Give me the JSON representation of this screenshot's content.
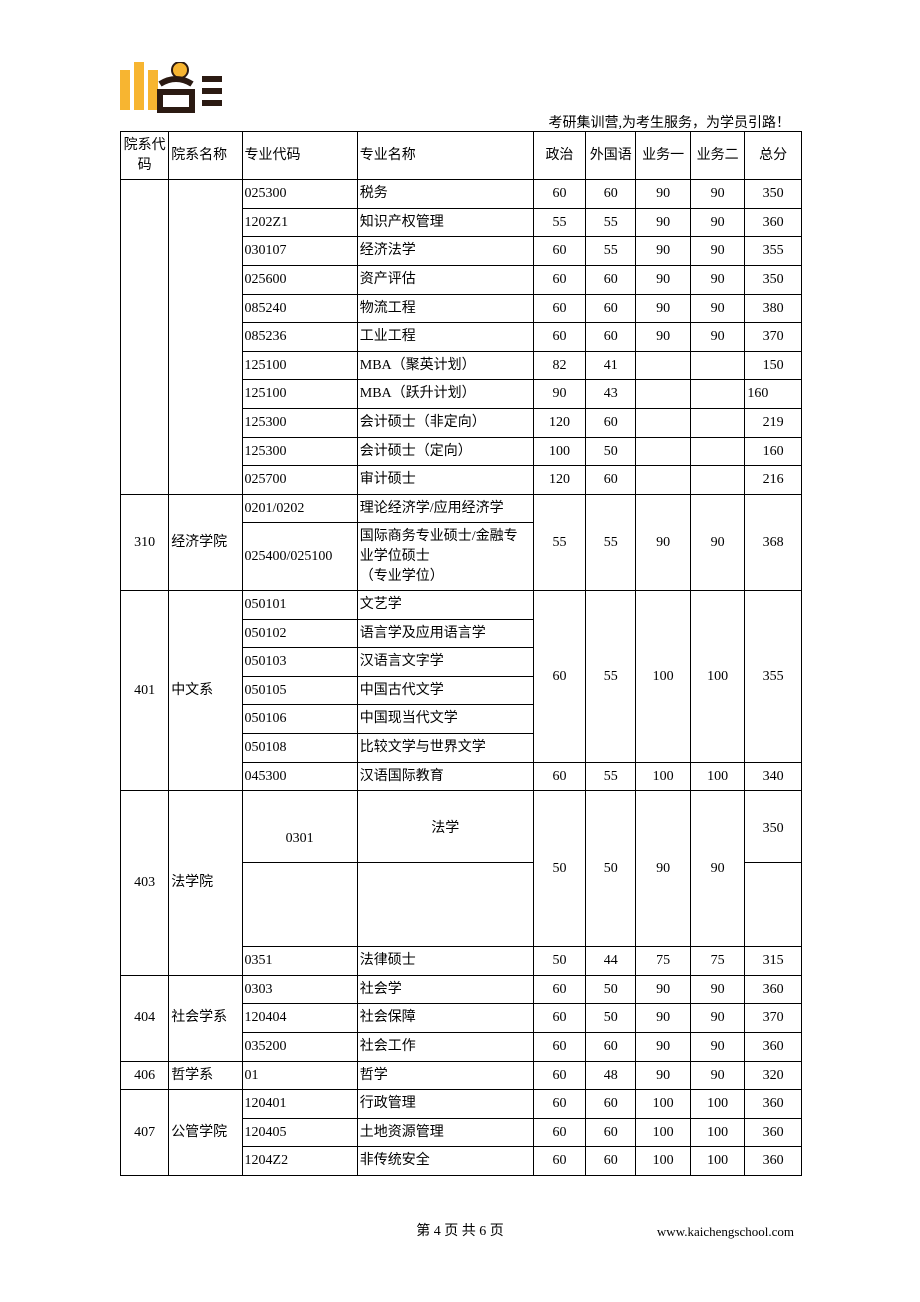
{
  "header": {
    "tagline": "考研集训营,为考生服务，为学员引路！",
    "logo_colors": {
      "orange": "#f7b531",
      "dark": "#2b1a12"
    }
  },
  "table": {
    "headers": {
      "dept_code": "院系代码",
      "dept_name": "院系名称",
      "major_code": "专业代码",
      "major_name": "专业名称",
      "politics": "政治",
      "foreign_lang": "外国语",
      "biz1": "业务一",
      "biz2": "业务二",
      "total": "总分"
    },
    "group0_rows": [
      {
        "code": "025300",
        "name": "税务",
        "pol": "60",
        "fl": "60",
        "b1": "90",
        "b2": "90",
        "tot": "350"
      },
      {
        "code": "1202Z1",
        "name": "知识产权管理",
        "pol": "55",
        "fl": "55",
        "b1": "90",
        "b2": "90",
        "tot": "360"
      },
      {
        "code": "030107",
        "name": "经济法学",
        "pol": "60",
        "fl": "55",
        "b1": "90",
        "b2": "90",
        "tot": "355"
      },
      {
        "code": "025600",
        "name": "资产评估",
        "pol": "60",
        "fl": "60",
        "b1": "90",
        "b2": "90",
        "tot": "350"
      },
      {
        "code": "085240",
        "name": "物流工程",
        "pol": "60",
        "fl": "60",
        "b1": "90",
        "b2": "90",
        "tot": "380"
      },
      {
        "code": "085236",
        "name": "工业工程",
        "pol": "60",
        "fl": "60",
        "b1": "90",
        "b2": "90",
        "tot": "370"
      },
      {
        "code": "125100",
        "name": "MBA（聚英计划）",
        "pol": "82",
        "fl": "41",
        "b1": "",
        "b2": "",
        "tot": "150"
      },
      {
        "code": "125100",
        "name": "MBA（跃升计划）",
        "pol": "90",
        "fl": "43",
        "b1": "",
        "b2": "",
        "tot": "160",
        "tot_left": true
      },
      {
        "code": "125300",
        "name": "会计硕士（非定向）",
        "pol": "120",
        "fl": "60",
        "b1": "",
        "b2": "",
        "tot": "219"
      },
      {
        "code": "125300",
        "name": "会计硕士（定向）",
        "pol": "100",
        "fl": "50",
        "b1": "",
        "b2": "",
        "tot": "160"
      },
      {
        "code": "025700",
        "name": "审计硕士",
        "pol": "120",
        "fl": "60",
        "b1": "",
        "b2": "",
        "tot": "216"
      }
    ],
    "group310": {
      "dept_code": "310",
      "dept_name": "经济学院",
      "rows": [
        {
          "code": "0201/0202",
          "name": "理论经济学/应用经济学"
        },
        {
          "code": "025400/025100",
          "name": "国际商务专业硕士/金融专业学位硕士\n（专业学位）"
        }
      ],
      "pol": "55",
      "fl": "55",
      "b1": "90",
      "b2": "90",
      "tot": "368"
    },
    "group401": {
      "dept_code": "401",
      "dept_name": "中文系",
      "merged_rows": [
        {
          "code": "050101",
          "name": "文艺学"
        },
        {
          "code": "050102",
          "name": "语言学及应用语言学"
        },
        {
          "code": "050103",
          "name": "汉语言文字学"
        },
        {
          "code": "050105",
          "name": "中国古代文学"
        },
        {
          "code": "050106",
          "name": "中国现当代文学"
        },
        {
          "code": "050108",
          "name": "比较文学与世界文学"
        }
      ],
      "merged_scores": {
        "pol": "60",
        "fl": "55",
        "b1": "100",
        "b2": "100",
        "tot": "355"
      },
      "extra_row": {
        "code": "045300",
        "name": "汉语国际教育",
        "pol": "60",
        "fl": "55",
        "b1": "100",
        "b2": "100",
        "tot": "340"
      }
    },
    "group403": {
      "dept_code": "403",
      "dept_name": "法学院",
      "row1": {
        "code": "0301",
        "name": "法学",
        "tot": "350"
      },
      "merged_scores": {
        "pol": "50",
        "fl": "50",
        "b1": "90",
        "b2": "90"
      },
      "row2": {
        "code": "0351",
        "name": "法律硕士",
        "pol": "50",
        "fl": "44",
        "b1": "75",
        "b2": "75",
        "tot": "315"
      }
    },
    "group404": {
      "dept_code": "404",
      "dept_name": "社会学系",
      "rows": [
        {
          "code": "0303",
          "name": "社会学",
          "pol": "60",
          "fl": "50",
          "b1": "90",
          "b2": "90",
          "tot": "360"
        },
        {
          "code": "120404",
          "name": "社会保障",
          "pol": "60",
          "fl": "50",
          "b1": "90",
          "b2": "90",
          "tot": "370"
        },
        {
          "code": "035200",
          "name": "社会工作",
          "pol": "60",
          "fl": "60",
          "b1": "90",
          "b2": "90",
          "tot": "360"
        }
      ]
    },
    "group406": {
      "dept_code": "406",
      "dept_name": "哲学系",
      "row": {
        "code": "01",
        "name": "哲学",
        "pol": "60",
        "fl": "48",
        "b1": "90",
        "b2": "90",
        "tot": "320"
      }
    },
    "group407": {
      "dept_code": "407",
      "dept_name": "公管学院",
      "rows": [
        {
          "code": "120401",
          "name": "行政管理",
          "pol": "60",
          "fl": "60",
          "b1": "100",
          "b2": "100",
          "tot": "360"
        },
        {
          "code": "120405",
          "name": "土地资源管理",
          "pol": "60",
          "fl": "60",
          "b1": "100",
          "b2": "100",
          "tot": "360"
        },
        {
          "code": "1204Z2",
          "name": "非传统安全",
          "pol": "60",
          "fl": "60",
          "b1": "100",
          "b2": "100",
          "tot": "360"
        }
      ]
    }
  },
  "footer": {
    "page_label": "第 4 页 共 6 页",
    "url": "www.kaichengschool.com"
  }
}
